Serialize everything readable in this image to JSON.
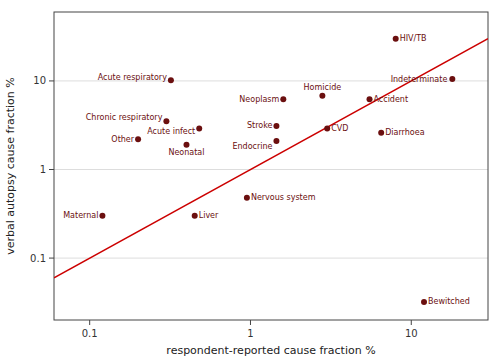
{
  "chart_data": {
    "type": "scatter",
    "xlabel": "respondent-reported cause fraction %",
    "ylabel": "verbal autopsy cause fraction %",
    "log": true,
    "grid": "y",
    "xlim": [
      0.06,
      30
    ],
    "ylim": [
      0.02,
      60
    ],
    "xticks": [
      0.1,
      1,
      10
    ],
    "yticks": [
      0.1,
      1,
      10
    ],
    "series": [
      {
        "type": "scatter",
        "color": "#6b0f0f",
        "labels": [
          "HIV/TB",
          "Indeterminate",
          "Acute respiratory",
          "Neoplasm",
          "Homicide",
          "Accident",
          "Chronic respiratory",
          "Acute infect",
          "Stroke",
          "CVD",
          "Diarrhoea",
          "Other",
          "Neonatal",
          "Endocrine",
          "Nervous system",
          "Maternal",
          "Liver",
          "Bewitched"
        ],
        "x": [
          8.0,
          18.0,
          0.32,
          1.6,
          2.8,
          5.5,
          0.3,
          0.48,
          1.45,
          3.0,
          6.5,
          0.2,
          0.4,
          1.45,
          0.95,
          0.12,
          0.45,
          12.0
        ],
        "values": [
          30.0,
          10.5,
          10.2,
          6.2,
          6.8,
          6.2,
          3.5,
          2.9,
          3.1,
          2.9,
          2.6,
          2.2,
          1.9,
          2.1,
          0.48,
          0.3,
          0.3,
          0.032
        ]
      },
      {
        "type": "line",
        "color": "#cc0000",
        "x": [
          0.06,
          30
        ],
        "values": [
          0.06,
          30
        ]
      }
    ]
  }
}
